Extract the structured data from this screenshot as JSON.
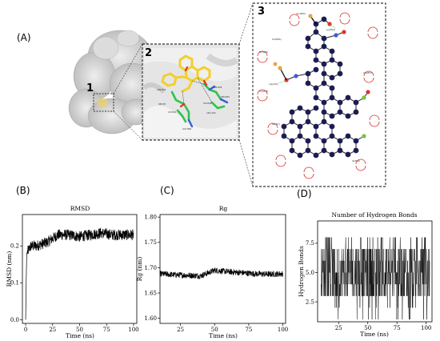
{
  "panels": {
    "a": "(A)",
    "b": "(B)",
    "c": "(C)",
    "d": "(D)"
  },
  "insets": {
    "one": "1",
    "two": "2",
    "three": "3"
  },
  "inset2_residues": [
    "ASN:B53",
    "SER:B7",
    "LYS:B14",
    "ASN:B46",
    "SER:B49",
    "HIS:B48",
    "GLU:B66",
    "ARG:A94"
  ],
  "inset3_residues": [
    "Asn(B46)",
    "Lys(B61)",
    "Gln(B66)",
    "Pro(B25)",
    "Thr(B45)",
    "Arg(A94)",
    "Glu(B53)",
    "Ser(B7)",
    "Ile(B13)"
  ],
  "colors": {
    "ligand_yellow": "#f2cf2b",
    "residue_green": "#2ec44d",
    "atom_dark": "#1c1c55",
    "hbond_red": "#d4302a",
    "line": "#000000"
  },
  "chart_data": [
    {
      "type": "line",
      "title": "RMSD",
      "xlabel": "Time (ns)",
      "ylabel": "RMSD (nm)",
      "xticks": [
        "0",
        "25",
        "50",
        "75",
        "100"
      ],
      "yticks": [
        "0.0",
        "0.1",
        "0.2"
      ],
      "xlim": [
        -3,
        103
      ],
      "ylim": [
        -0.01,
        0.285
      ],
      "series_summary": [
        {
          "x": 0,
          "y": 0.0
        },
        {
          "x": 0.5,
          "y": 0.1
        },
        {
          "x": 1,
          "y": 0.18
        },
        {
          "x": 5,
          "y": 0.2
        },
        {
          "x": 10,
          "y": 0.2
        },
        {
          "x": 20,
          "y": 0.21
        },
        {
          "x": 25,
          "y": 0.22
        },
        {
          "x": 30,
          "y": 0.23
        },
        {
          "x": 40,
          "y": 0.23
        },
        {
          "x": 50,
          "y": 0.225
        },
        {
          "x": 60,
          "y": 0.23
        },
        {
          "x": 70,
          "y": 0.235
        },
        {
          "x": 80,
          "y": 0.23
        },
        {
          "x": 90,
          "y": 0.23
        },
        {
          "x": 100,
          "y": 0.23
        }
      ],
      "noise_amplitude": 0.015
    },
    {
      "type": "line",
      "title": "Rg",
      "xlabel": "Time (ns)",
      "ylabel": "Rg (nm)",
      "xticks": [
        "25",
        "50",
        "75",
        "100"
      ],
      "yticks": [
        "1.60",
        "1.65",
        "1.70",
        "1.75",
        "1.80"
      ],
      "xlim": [
        10,
        102
      ],
      "ylim": [
        1.59,
        1.805
      ],
      "series_summary": [
        {
          "x": 10,
          "y": 1.688
        },
        {
          "x": 20,
          "y": 1.686
        },
        {
          "x": 30,
          "y": 1.685
        },
        {
          "x": 40,
          "y": 1.684
        },
        {
          "x": 50,
          "y": 1.695
        },
        {
          "x": 60,
          "y": 1.692
        },
        {
          "x": 70,
          "y": 1.69
        },
        {
          "x": 80,
          "y": 1.688
        },
        {
          "x": 90,
          "y": 1.687
        },
        {
          "x": 100,
          "y": 1.688
        }
      ],
      "noise_amplitude": 0.006
    },
    {
      "type": "line",
      "title": "Number of Hydrogen Bonds",
      "xlabel": "Time (ns)",
      "ylabel": "Hydrogen Bonds",
      "xticks": [
        "25",
        "50",
        "75",
        "100"
      ],
      "yticks": [
        "2.5",
        "5.0",
        "7.5"
      ],
      "xlim": [
        7,
        105
      ],
      "ylim": [
        0.8,
        9.4
      ],
      "value_range": [
        1,
        8
      ],
      "typical_range": [
        3,
        7
      ]
    }
  ]
}
